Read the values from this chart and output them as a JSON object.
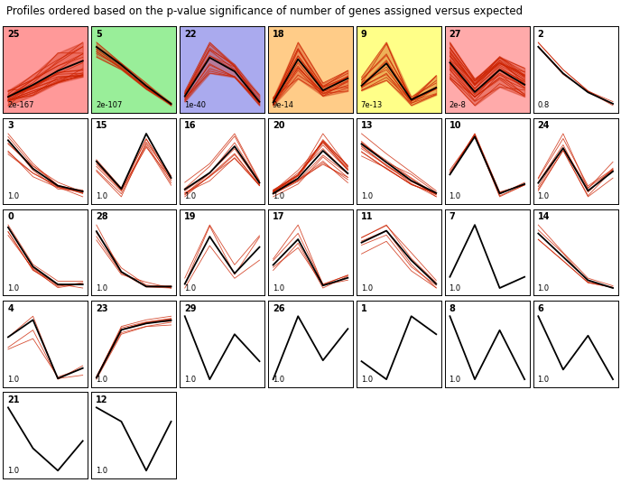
{
  "title": "Profiles ordered based on the p-value significance of number of genes assigned versus expected",
  "title_fontsize": 8.5,
  "panels": [
    {
      "id": 25,
      "pval": "2e-167",
      "bg": "#FF9999",
      "row": 0,
      "col": 0,
      "mean": [
        0.1,
        0.4,
        0.75,
        1.0
      ],
      "spread": 0.5,
      "num_lines": 20,
      "fill": true
    },
    {
      "id": 5,
      "pval": "2e-107",
      "bg": "#99EE99",
      "row": 0,
      "col": 1,
      "mean": [
        1.0,
        0.7,
        0.35,
        0.05
      ],
      "spread": 0.12,
      "num_lines": 8,
      "fill": true
    },
    {
      "id": 22,
      "pval": "1e-40",
      "bg": "#AAAAEE",
      "row": 0,
      "col": 2,
      "mean": [
        0.15,
        0.85,
        0.6,
        0.05
      ],
      "spread": 0.3,
      "num_lines": 12,
      "fill": true
    },
    {
      "id": 18,
      "pval": "9e-14",
      "bg": "#FFCC88",
      "row": 0,
      "col": 3,
      "mean": [
        0.05,
        0.95,
        0.3,
        0.55
      ],
      "spread": 0.35,
      "num_lines": 14,
      "fill": true
    },
    {
      "id": 9,
      "pval": "7e-13",
      "bg": "#FFFF88",
      "row": 0,
      "col": 4,
      "mean": [
        0.45,
        1.0,
        0.1,
        0.4
      ],
      "spread": 0.45,
      "num_lines": 12,
      "fill": true
    },
    {
      "id": 27,
      "pval": "2e-8",
      "bg": "#FFAAAA",
      "row": 0,
      "col": 5,
      "mean": [
        0.85,
        0.65,
        0.8,
        0.7
      ],
      "spread": 0.12,
      "num_lines": 25,
      "fill": true
    },
    {
      "id": 2,
      "pval": "0.8",
      "bg": "#FFFFFF",
      "row": 0,
      "col": 6,
      "mean": [
        1.0,
        0.65,
        0.4,
        0.25
      ],
      "spread": 0.08,
      "num_lines": 3,
      "fill": false
    },
    {
      "id": 3,
      "pval": "1.0",
      "bg": "#FFFFFF",
      "row": 1,
      "col": 0,
      "mean": [
        0.95,
        0.45,
        0.15,
        0.05
      ],
      "spread": 0.25,
      "num_lines": 8,
      "fill": false
    },
    {
      "id": 15,
      "pval": "1.0",
      "bg": "#FFFFFF",
      "row": 1,
      "col": 1,
      "mean": [
        0.5,
        0.25,
        0.75,
        0.35
      ],
      "spread": 0.18,
      "num_lines": 6,
      "fill": false
    },
    {
      "id": 16,
      "pval": "1.0",
      "bg": "#FFFFFF",
      "row": 1,
      "col": 2,
      "mean": [
        0.2,
        0.45,
        0.85,
        0.3
      ],
      "spread": 0.22,
      "num_lines": 8,
      "fill": false
    },
    {
      "id": 20,
      "pval": "1.0",
      "bg": "#FFFFFF",
      "row": 1,
      "col": 3,
      "mean": [
        0.1,
        0.4,
        0.95,
        0.5
      ],
      "spread": 0.28,
      "num_lines": 14,
      "fill": false
    },
    {
      "id": 13,
      "pval": "1.0",
      "bg": "#FFFFFF",
      "row": 1,
      "col": 4,
      "mean": [
        0.9,
        0.6,
        0.3,
        0.1
      ],
      "spread": 0.22,
      "num_lines": 10,
      "fill": false
    },
    {
      "id": 10,
      "pval": "1.0",
      "bg": "#FFFFFF",
      "row": 1,
      "col": 5,
      "mean": [
        0.35,
        0.95,
        0.05,
        0.2
      ],
      "spread": 0.18,
      "num_lines": 5,
      "fill": false
    },
    {
      "id": 24,
      "pval": "1.0",
      "bg": "#FFFFFF",
      "row": 1,
      "col": 6,
      "mean": [
        0.5,
        0.95,
        0.4,
        0.65
      ],
      "spread": 0.22,
      "num_lines": 6,
      "fill": false
    },
    {
      "id": 0,
      "pval": "1.0",
      "bg": "#FFFFFF",
      "row": 2,
      "col": 0,
      "mean": [
        0.85,
        0.3,
        0.05,
        0.05
      ],
      "spread": 0.18,
      "num_lines": 5,
      "fill": false
    },
    {
      "id": 28,
      "pval": "1.0",
      "bg": "#FFFFFF",
      "row": 2,
      "col": 1,
      "mean": [
        0.9,
        0.35,
        0.15,
        0.15
      ],
      "spread": 0.2,
      "num_lines": 4,
      "fill": false
    },
    {
      "id": 19,
      "pval": "1.0",
      "bg": "#FFFFFF",
      "row": 2,
      "col": 2,
      "mean": [
        0.25,
        0.7,
        0.35,
        0.6
      ],
      "spread": 0.18,
      "num_lines": 3,
      "fill": false
    },
    {
      "id": 17,
      "pval": "1.0",
      "bg": "#FFFFFF",
      "row": 2,
      "col": 3,
      "mean": [
        0.45,
        0.95,
        0.05,
        0.2
      ],
      "spread": 0.28,
      "num_lines": 4,
      "fill": false
    },
    {
      "id": 11,
      "pval": "1.0",
      "bg": "#FFFFFF",
      "row": 2,
      "col": 4,
      "mean": [
        0.85,
        0.95,
        0.7,
        0.5
      ],
      "spread": 0.12,
      "num_lines": 5,
      "fill": false
    },
    {
      "id": 7,
      "pval": "1.0",
      "bg": "#FFFFFF",
      "row": 2,
      "col": 5,
      "mean": [
        0.2,
        0.9,
        0.05,
        0.2
      ],
      "spread": 0.0,
      "num_lines": 1,
      "fill": false
    },
    {
      "id": 14,
      "pval": "1.0",
      "bg": "#FFFFFF",
      "row": 2,
      "col": 6,
      "mean": [
        0.85,
        0.55,
        0.25,
        0.15
      ],
      "spread": 0.12,
      "num_lines": 4,
      "fill": false
    },
    {
      "id": 4,
      "pval": "1.0",
      "bg": "#FFFFFF",
      "row": 3,
      "col": 0,
      "mean": [
        0.65,
        0.9,
        0.05,
        0.2
      ],
      "spread": 0.28,
      "num_lines": 3,
      "fill": false
    },
    {
      "id": 23,
      "pval": "1.0",
      "bg": "#FFFFFF",
      "row": 3,
      "col": 1,
      "mean": [
        0.05,
        0.8,
        0.9,
        0.95
      ],
      "spread": 0.08,
      "num_lines": 7,
      "fill": false
    },
    {
      "id": 29,
      "pval": "1.0",
      "bg": "#FFFFFF",
      "row": 3,
      "col": 2,
      "mean": [
        0.75,
        0.4,
        0.65,
        0.5
      ],
      "spread": 0.0,
      "num_lines": 1,
      "fill": false
    },
    {
      "id": 26,
      "pval": "1.0",
      "bg": "#FFFFFF",
      "row": 3,
      "col": 3,
      "mean": [
        0.3,
        0.8,
        0.45,
        0.7
      ],
      "spread": 0.0,
      "num_lines": 1,
      "fill": false
    },
    {
      "id": 1,
      "pval": "1.0",
      "bg": "#FFFFFF",
      "row": 3,
      "col": 4,
      "mean": [
        0.3,
        0.2,
        0.55,
        0.45
      ],
      "spread": 0.0,
      "num_lines": 1,
      "fill": false
    },
    {
      "id": 8,
      "pval": "1.0",
      "bg": "#FFFFFF",
      "row": 3,
      "col": 5,
      "mean": [
        0.65,
        0.2,
        0.55,
        0.2
      ],
      "spread": 0.0,
      "num_lines": 1,
      "fill": false
    },
    {
      "id": 6,
      "pval": "1.0",
      "bg": "#FFFFFF",
      "row": 3,
      "col": 6,
      "mean": [
        0.85,
        0.3,
        0.65,
        0.2
      ],
      "spread": 0.0,
      "num_lines": 1,
      "fill": false
    },
    {
      "id": 21,
      "pval": "1.0",
      "bg": "#FFFFFF",
      "row": 4,
      "col": 0,
      "mean": [
        0.9,
        0.35,
        0.05,
        0.45
      ],
      "spread": 0.0,
      "num_lines": 1,
      "fill": false
    },
    {
      "id": 12,
      "pval": "1.0",
      "bg": "#FFFFFF",
      "row": 4,
      "col": 1,
      "mean": [
        0.6,
        0.5,
        0.15,
        0.5
      ],
      "spread": 0.0,
      "num_lines": 1,
      "fill": false
    }
  ],
  "line_color": "#CC2200",
  "mean_line_color": "#000000",
  "ncols": 7,
  "nrows": 5
}
